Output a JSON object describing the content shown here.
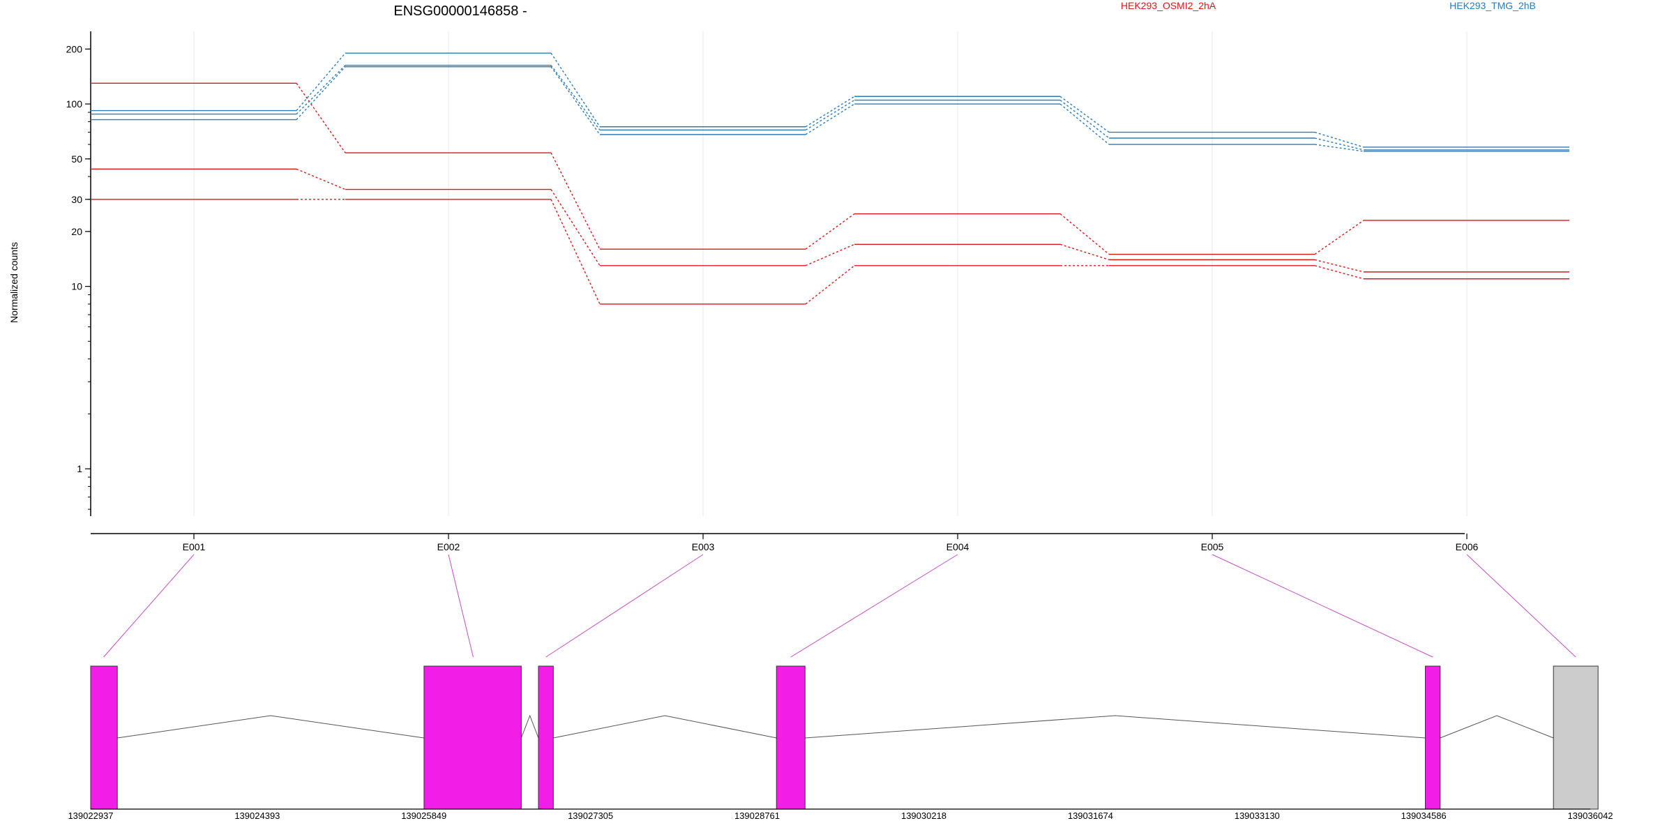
{
  "chart_data": {
    "type": "line",
    "title": "ENSG00000146858 -",
    "ylabel": "Normalized counts",
    "xlabel": "",
    "y_scale": "log",
    "ylim": [
      0.55,
      250
    ],
    "y_ticks": [
      1,
      10,
      20,
      30,
      50,
      100,
      200
    ],
    "grid": "vertical lines at each exon",
    "legend_placement": "top-right",
    "categories": [
      "E001",
      "E002",
      "E003",
      "E004",
      "E005",
      "E006"
    ],
    "series": [
      {
        "name": "HEK293_OSMI2_2hA",
        "color": "#d7191c",
        "values": [
          130,
          54,
          16,
          25,
          15,
          23
        ]
      },
      {
        "name": "",
        "color": "#d7191c",
        "values": [
          44,
          34,
          13,
          17,
          14,
          12
        ]
      },
      {
        "name": "",
        "color": "#d7191c",
        "values": [
          30,
          30,
          8,
          13,
          13,
          11
        ]
      },
      {
        "name": "HEK293_TMG_2hB",
        "color": "#2c7bb6",
        "values": [
          92,
          190,
          75,
          110,
          70,
          58
        ]
      },
      {
        "name": "",
        "color": "#2c7bb6",
        "values": [
          88,
          163,
          72,
          105,
          65,
          56
        ]
      },
      {
        "name": "",
        "color": "#2c7bb6",
        "values": [
          82,
          160,
          68,
          100,
          60,
          55
        ]
      }
    ],
    "gene_model": {
      "coordinate_ticks": [
        "139022937",
        "139024393",
        "139025849",
        "139027305",
        "139028761",
        "139030218",
        "139031674",
        "139033130",
        "139034586",
        "139036042"
      ],
      "exon_color": "#f21ee8",
      "noncounted_exon_color": "#cccccc",
      "intron_color": "#555555",
      "connector_color": "#c050c0",
      "exons": [
        {
          "start": 139022937,
          "end": 139023170,
          "counted": true
        },
        {
          "start": 139025850,
          "end": 139026700,
          "counted": true
        },
        {
          "start": 139026850,
          "end": 139026980,
          "counted": true
        },
        {
          "start": 139028930,
          "end": 139029180,
          "counted": true
        },
        {
          "start": 139034600,
          "end": 139034730,
          "counted": true
        },
        {
          "start": 139035720,
          "end": 139036110,
          "counted": false
        }
      ],
      "exon_links": [
        {
          "label": "E001",
          "genomic": 139023050
        },
        {
          "label": "E002",
          "genomic": 139026280
        },
        {
          "label": "E003",
          "genomic": 139026915
        },
        {
          "label": "E004",
          "genomic": 139029055
        },
        {
          "label": "E005",
          "genomic": 139034665
        },
        {
          "label": "E006",
          "genomic": 139035915
        }
      ]
    }
  }
}
